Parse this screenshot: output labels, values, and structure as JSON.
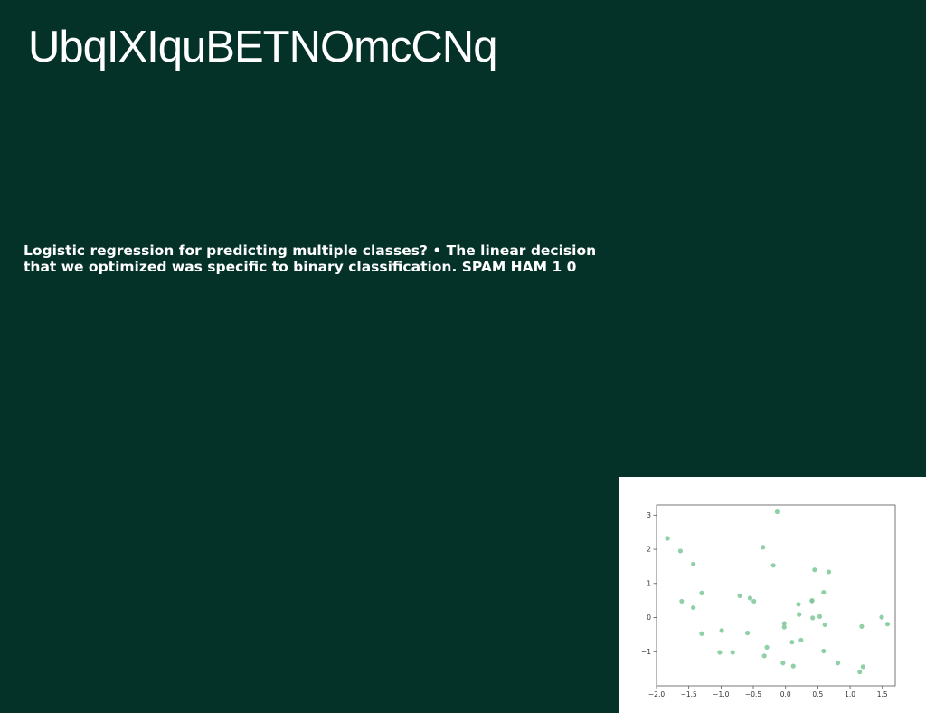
{
  "slide": {
    "title": "UbqIXIquBETNOmcCNq",
    "body": "Logistic regression for predicting multiple classes? • The linear decision that we optimized was specific to binary classification. SPAM HAM 1 0"
  },
  "colors": {
    "background": "#043228",
    "text": "#ffffff",
    "chart_background": "#ffffff",
    "point": "#7bc896"
  },
  "chart_data": {
    "type": "scatter",
    "title": "",
    "xlabel": "",
    "ylabel": "",
    "xlim": [
      -2.0,
      1.7
    ],
    "ylim": [
      -2.0,
      3.3
    ],
    "xticks": [
      -2.0,
      -1.5,
      -1.0,
      -0.5,
      0.0,
      0.5,
      1.0,
      1.5
    ],
    "xtick_labels": [
      "−2.0",
      "−1.5",
      "−1.0",
      "−0.5",
      "0.0",
      "0.5",
      "1.0",
      "1.5"
    ],
    "yticks": [
      -1,
      0,
      1,
      2,
      3
    ],
    "ytick_labels": [
      "−1",
      "0",
      "1",
      "2",
      "3"
    ],
    "grid": false,
    "series": [
      {
        "points": [
          [
            -1.83,
            2.32
          ],
          [
            -1.63,
            1.95
          ],
          [
            -1.61,
            0.48
          ],
          [
            -1.43,
            1.57
          ],
          [
            -1.43,
            0.29
          ],
          [
            -1.3,
            -0.47
          ],
          [
            -1.3,
            0.72
          ],
          [
            -1.02,
            -1.02
          ],
          [
            -0.99,
            -0.38
          ],
          [
            -0.82,
            -1.02
          ],
          [
            -0.71,
            0.64
          ],
          [
            -0.59,
            -0.45
          ],
          [
            -0.55,
            0.57
          ],
          [
            -0.49,
            0.48
          ],
          [
            -0.35,
            2.06
          ],
          [
            -0.33,
            -1.12
          ],
          [
            -0.29,
            -0.87
          ],
          [
            -0.19,
            1.53
          ],
          [
            -0.13,
            3.1
          ],
          [
            -0.04,
            -1.33
          ],
          [
            -0.02,
            -0.17
          ],
          [
            -0.02,
            -0.28
          ],
          [
            0.1,
            -0.72
          ],
          [
            0.12,
            -1.42
          ],
          [
            0.2,
            0.39
          ],
          [
            0.21,
            0.09
          ],
          [
            0.24,
            -0.66
          ],
          [
            0.41,
            0.49
          ],
          [
            0.41,
            0.5
          ],
          [
            0.42,
            -0.01
          ],
          [
            0.45,
            1.4
          ],
          [
            0.53,
            0.03
          ],
          [
            0.59,
            0.74
          ],
          [
            0.59,
            -0.98
          ],
          [
            0.61,
            -0.21
          ],
          [
            0.67,
            1.34
          ],
          [
            0.81,
            -1.33
          ],
          [
            1.15,
            -1.59
          ],
          [
            1.18,
            -0.26
          ],
          [
            1.2,
            -1.44
          ],
          [
            1.49,
            0.01
          ],
          [
            1.58,
            -0.19
          ]
        ]
      }
    ]
  }
}
